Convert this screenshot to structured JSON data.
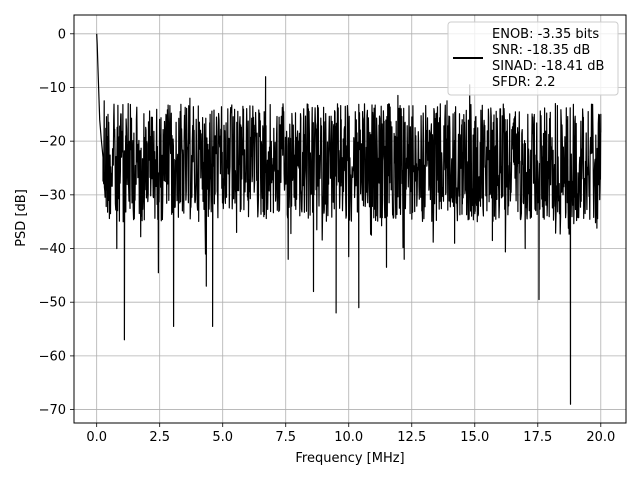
{
  "chart_data": {
    "type": "line",
    "title": "",
    "xlabel": "Frequency [MHz]",
    "ylabel": "PSD [dB]",
    "xlim": [
      -0.9,
      21.0
    ],
    "ylim": [
      -72.5,
      3.5
    ],
    "x_ticks": [
      0.0,
      2.5,
      5.0,
      7.5,
      10.0,
      12.5,
      15.0,
      17.5,
      20.0
    ],
    "x_tick_labels": [
      "0.0",
      "2.5",
      "5.0",
      "7.5",
      "10.0",
      "12.5",
      "15.0",
      "17.5",
      "20.0"
    ],
    "y_ticks": [
      0,
      -10,
      -20,
      -30,
      -40,
      -50,
      -60,
      -70
    ],
    "y_tick_labels": [
      "0",
      "−10",
      "−20",
      "−30",
      "−40",
      "−50",
      "−60",
      "−70"
    ],
    "grid": true,
    "legend_position": "top-right",
    "legend_lines": [
      "ENOB: -3.35 bits",
      "SNR: -18.35 dB",
      "SINAD: -18.41 dB",
      "SFDR: 2.2"
    ],
    "series": [
      {
        "color": "#000000",
        "x_range": [
          0.0,
          20.0
        ],
        "notes": "noise-like PSD, band roughly -35 to -13 dB",
        "points": [
          [
            0.0,
            0.0
          ],
          [
            0.02,
            -2.0
          ],
          [
            0.05,
            -6.0
          ],
          [
            0.08,
            -10.5
          ],
          [
            0.12,
            -16.0
          ],
          [
            0.18,
            -19.5
          ],
          [
            0.25,
            -23.0
          ],
          [
            0.3,
            -12.5
          ],
          [
            0.35,
            -29.0
          ],
          [
            0.45,
            -15.0
          ],
          [
            0.55,
            -33.5
          ],
          [
            0.7,
            -18.0
          ],
          [
            0.8,
            -40.0
          ],
          [
            0.95,
            -16.0
          ],
          [
            1.05,
            -35.0
          ],
          [
            1.1,
            -57.0
          ],
          [
            1.15,
            -19.0
          ],
          [
            1.25,
            -13.0
          ],
          [
            1.4,
            -31.5
          ],
          [
            1.6,
            -17.5
          ],
          [
            1.8,
            -34.0
          ],
          [
            2.0,
            -20.5
          ],
          [
            2.2,
            -27.0
          ],
          [
            2.45,
            -44.5
          ],
          [
            2.55,
            -18.5
          ],
          [
            2.8,
            -28.0
          ],
          [
            3.05,
            -54.5
          ],
          [
            3.15,
            -16.5
          ],
          [
            3.4,
            -33.0
          ],
          [
            3.7,
            -12.0
          ],
          [
            3.9,
            -29.0
          ],
          [
            4.1,
            -21.5
          ],
          [
            4.35,
            -47.0
          ],
          [
            4.5,
            -15.0
          ],
          [
            4.6,
            -54.5
          ],
          [
            4.7,
            -19.0
          ],
          [
            5.0,
            -27.0
          ],
          [
            5.2,
            -14.0
          ],
          [
            5.55,
            -37.0
          ],
          [
            5.8,
            -13.5
          ],
          [
            6.0,
            -31.0
          ],
          [
            6.3,
            -16.5
          ],
          [
            6.7,
            -8.0
          ],
          [
            6.9,
            -30.0
          ],
          [
            7.3,
            -20.0
          ],
          [
            7.6,
            -42.0
          ],
          [
            7.8,
            -17.0
          ],
          [
            8.1,
            -29.0
          ],
          [
            8.4,
            -14.0
          ],
          [
            8.6,
            -48.0
          ],
          [
            8.8,
            -18.5
          ],
          [
            9.2,
            -28.0
          ],
          [
            9.5,
            -52.0
          ],
          [
            9.7,
            -16.0
          ],
          [
            10.0,
            -41.5
          ],
          [
            10.3,
            -19.5
          ],
          [
            10.4,
            -51.0
          ],
          [
            10.55,
            -14.5
          ],
          [
            10.9,
            -37.5
          ],
          [
            11.2,
            -17.0
          ],
          [
            11.5,
            -43.5
          ],
          [
            11.7,
            -22.0
          ],
          [
            11.95,
            -11.5
          ],
          [
            12.2,
            -42.0
          ],
          [
            12.5,
            -15.5
          ],
          [
            12.9,
            -33.0
          ],
          [
            13.2,
            -18.0
          ],
          [
            13.55,
            -29.5
          ],
          [
            13.9,
            -12.5
          ],
          [
            14.2,
            -39.0
          ],
          [
            14.5,
            -16.0
          ],
          [
            14.8,
            -9.5
          ],
          [
            15.0,
            -33.5
          ],
          [
            15.4,
            -18.0
          ],
          [
            15.7,
            -38.5
          ],
          [
            16.0,
            -14.0
          ],
          [
            16.4,
            -29.0
          ],
          [
            16.7,
            -17.5
          ],
          [
            17.0,
            -40.0
          ],
          [
            17.3,
            -15.5
          ],
          [
            17.55,
            -49.5
          ],
          [
            17.7,
            -21.0
          ],
          [
            17.9,
            -27.0
          ],
          [
            18.2,
            -13.0
          ],
          [
            18.5,
            -30.0
          ],
          [
            18.8,
            -69.0
          ],
          [
            18.95,
            -19.0
          ],
          [
            19.2,
            -24.0
          ],
          [
            19.5,
            -14.5
          ],
          [
            19.8,
            -31.5
          ],
          [
            20.0,
            -15.0
          ]
        ]
      }
    ]
  }
}
